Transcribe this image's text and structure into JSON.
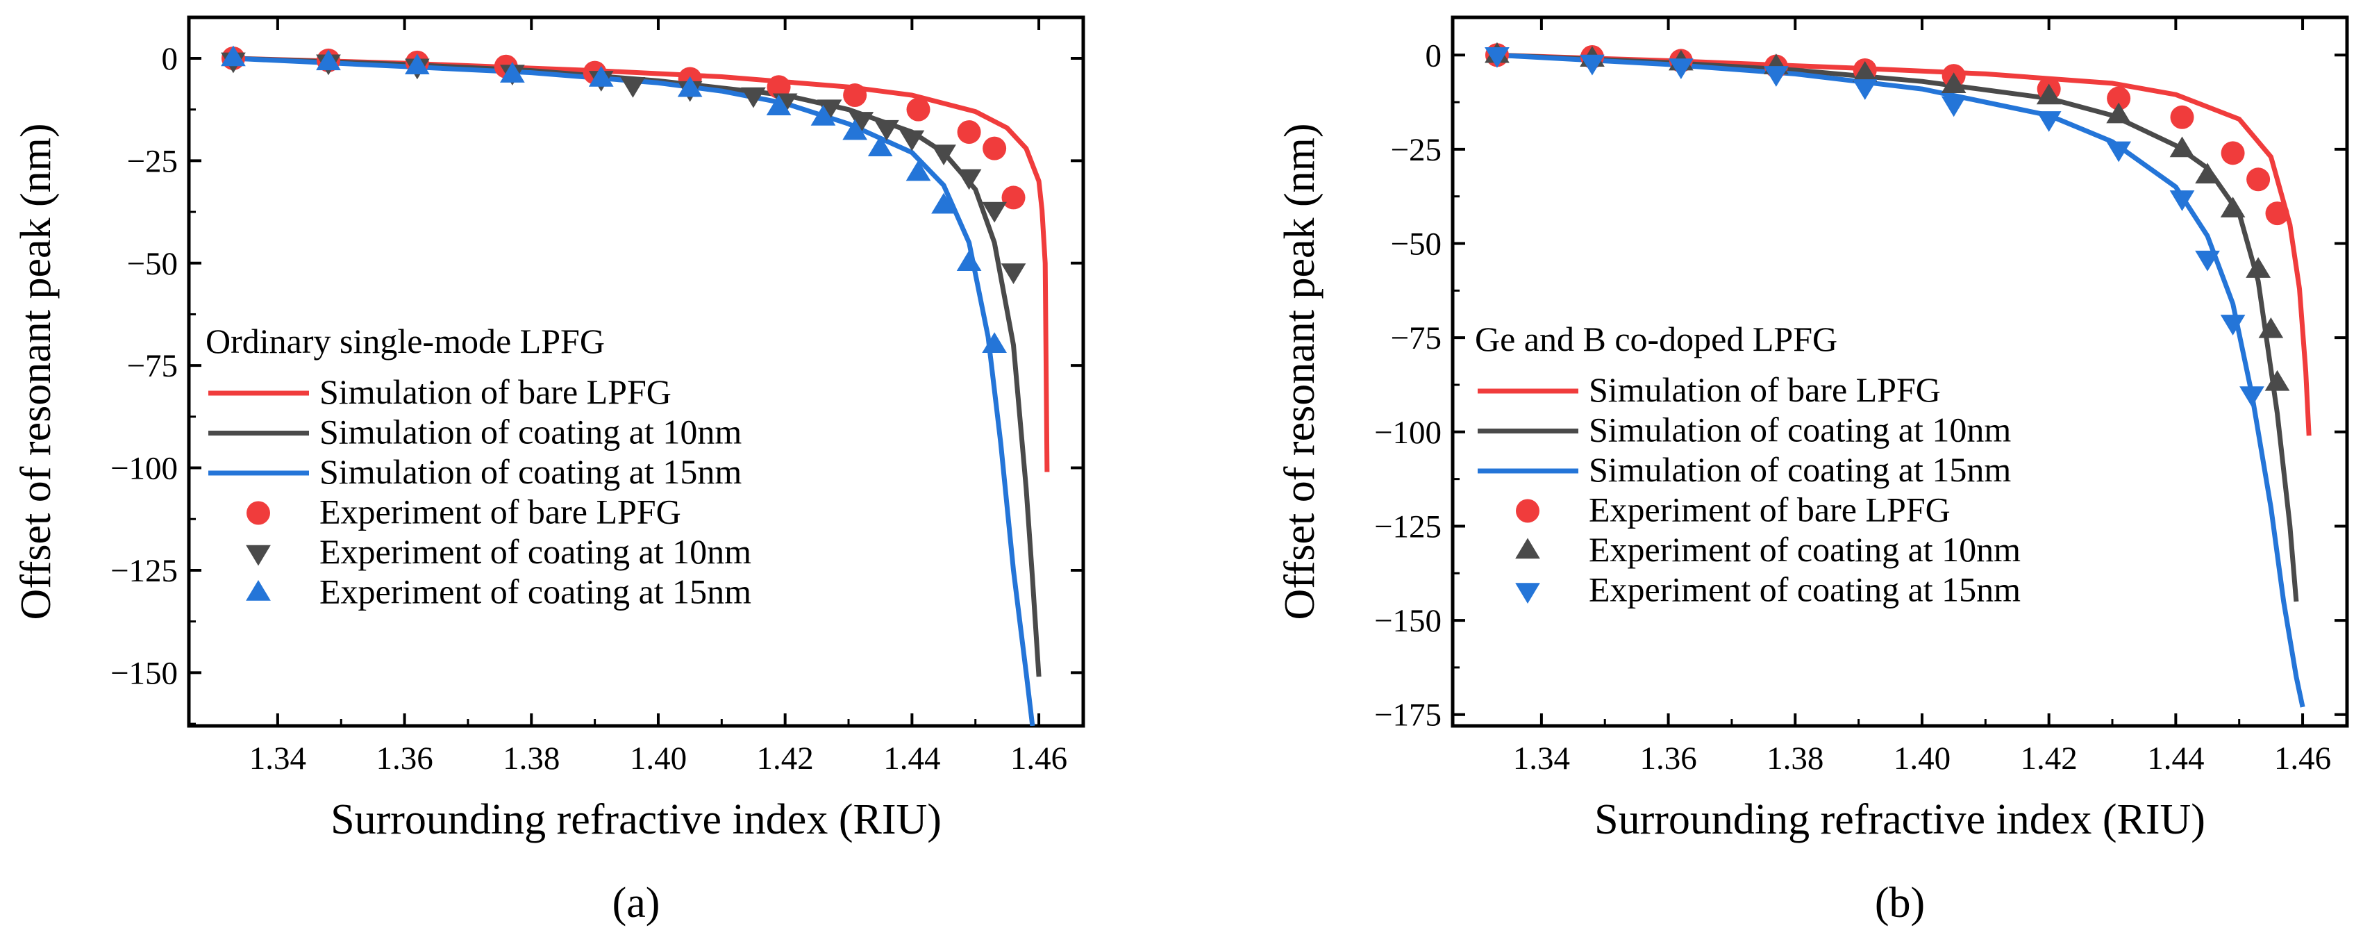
{
  "chart_data": [
    {
      "type": "line",
      "panel_label": "(a)",
      "xlabel": "Surrounding refractive index (RIU)",
      "ylabel": "Offset of resonant peak (nm)",
      "xlim": [
        1.326,
        1.467
      ],
      "ylim": [
        -163,
        10
      ],
      "xticks": [
        1.34,
        1.36,
        1.38,
        1.4,
        1.42,
        1.44,
        1.46
      ],
      "xtick_labels": [
        "1.34",
        "1.36",
        "1.38",
        "1.40",
        "1.42",
        "1.44",
        "1.46"
      ],
      "yticks": [
        0,
        -25,
        -50,
        -75,
        -100,
        -125,
        -150
      ],
      "ytick_labels": [
        "0",
        "−25",
        "−50",
        "−75",
        "−100",
        "−125",
        "−150"
      ],
      "legend_title": "Ordinary single-mode LPFG",
      "legend_position": "left",
      "grid": false,
      "series": [
        {
          "name": "Simulation of bare LPFG",
          "kind": "line",
          "color": "#f03c3c",
          "x": [
            1.333,
            1.36,
            1.39,
            1.41,
            1.43,
            1.44,
            1.45,
            1.455,
            1.458,
            1.46,
            1.4605,
            1.461,
            1.4613
          ],
          "y": [
            0,
            -1.2,
            -3,
            -4.5,
            -7,
            -9,
            -13,
            -17,
            -22,
            -30,
            -37,
            -50,
            -101
          ]
        },
        {
          "name": "Simulation of coating at 10nm",
          "kind": "line",
          "color": "#4a4a4a",
          "x": [
            1.333,
            1.36,
            1.38,
            1.4,
            1.42,
            1.43,
            1.44,
            1.445,
            1.45,
            1.453,
            1.456,
            1.458,
            1.459,
            1.46
          ],
          "y": [
            0,
            -1.5,
            -3,
            -5.5,
            -9,
            -12.5,
            -18,
            -23,
            -32,
            -45,
            -70,
            -105,
            -127,
            -151
          ]
        },
        {
          "name": "Simulation of coating at 15nm",
          "kind": "line",
          "color": "#2475d8",
          "x": [
            1.333,
            1.36,
            1.38,
            1.4,
            1.41,
            1.42,
            1.43,
            1.44,
            1.445,
            1.449,
            1.452,
            1.454,
            1.456,
            1.458,
            1.459
          ],
          "y": [
            0,
            -2,
            -3.5,
            -6,
            -8,
            -11,
            -16,
            -23,
            -31,
            -45,
            -68,
            -94,
            -125,
            -150,
            -163
          ]
        },
        {
          "name": "Experiment of bare LPFG",
          "kind": "scatter",
          "marker": "circle",
          "color": "#f03c3c",
          "x": [
            1.333,
            1.348,
            1.362,
            1.376,
            1.39,
            1.405,
            1.419,
            1.431,
            1.441,
            1.449,
            1.453,
            1.456
          ],
          "y": [
            0,
            -0.5,
            -1,
            -2,
            -3.5,
            -5,
            -7,
            -9,
            -12.5,
            -18,
            -22,
            -34
          ]
        },
        {
          "name": "Experiment of coating at 10nm",
          "kind": "scatter",
          "marker": "triangle-down",
          "color": "#4a4a4a",
          "x": [
            1.333,
            1.348,
            1.362,
            1.377,
            1.391,
            1.396,
            1.405,
            1.415,
            1.42,
            1.427,
            1.432,
            1.436,
            1.44,
            1.445,
            1.449,
            1.453,
            1.456
          ],
          "y": [
            -0.5,
            -1,
            -2,
            -3.5,
            -5,
            -6.5,
            -7.5,
            -9,
            -10.5,
            -12,
            -15,
            -17,
            -19.5,
            -23,
            -29,
            -37,
            -52
          ]
        },
        {
          "name": "Experiment of coating at 15nm",
          "kind": "scatter",
          "marker": "triangle-up",
          "color": "#2475d8",
          "x": [
            1.333,
            1.348,
            1.362,
            1.377,
            1.391,
            1.405,
            1.419,
            1.426,
            1.431,
            1.435,
            1.441,
            1.445,
            1.449,
            1.453
          ],
          "y": [
            0,
            -1,
            -2,
            -4,
            -5,
            -7.5,
            -12,
            -14.5,
            -18,
            -22,
            -28,
            -36,
            -50,
            -70
          ]
        }
      ]
    },
    {
      "type": "line",
      "panel_label": "(b)",
      "xlabel": "Surrounding refractive index (RIU)",
      "ylabel": "Offset of resonant peak (nm)",
      "xlim": [
        1.326,
        1.467
      ],
      "ylim": [
        -178,
        10
      ],
      "xticks": [
        1.34,
        1.36,
        1.38,
        1.4,
        1.42,
        1.44,
        1.46
      ],
      "xtick_labels": [
        "1.34",
        "1.36",
        "1.38",
        "1.40",
        "1.42",
        "1.44",
        "1.46"
      ],
      "yticks": [
        0,
        -25,
        -50,
        -75,
        -100,
        -125,
        -150,
        -175
      ],
      "ytick_labels": [
        "0",
        "−25",
        "−50",
        "−75",
        "−100",
        "−125",
        "−150",
        "−175"
      ],
      "legend_title": "Ge and B co-doped LPFG",
      "legend_position": "left",
      "grid": false,
      "series": [
        {
          "name": "Simulation of bare LPFG",
          "kind": "line",
          "color": "#f03c3c",
          "x": [
            1.333,
            1.36,
            1.39,
            1.41,
            1.43,
            1.44,
            1.45,
            1.455,
            1.458,
            1.4595,
            1.4605,
            1.461
          ],
          "y": [
            0,
            -1.5,
            -3.5,
            -5,
            -7.5,
            -10.5,
            -17,
            -27,
            -45,
            -62,
            -84,
            -101
          ]
        },
        {
          "name": "Simulation of coating at 10nm",
          "kind": "line",
          "color": "#4a4a4a",
          "x": [
            1.333,
            1.36,
            1.38,
            1.4,
            1.42,
            1.43,
            1.44,
            1.445,
            1.45,
            1.453,
            1.456,
            1.458,
            1.459
          ],
          "y": [
            0,
            -2,
            -4,
            -7,
            -11.5,
            -16,
            -24,
            -30,
            -42,
            -60,
            -95,
            -125,
            -145
          ]
        },
        {
          "name": "Simulation of coating at 15nm",
          "kind": "line",
          "color": "#2475d8",
          "x": [
            1.333,
            1.36,
            1.38,
            1.4,
            1.42,
            1.43,
            1.44,
            1.445,
            1.449,
            1.452,
            1.455,
            1.457,
            1.459,
            1.46
          ],
          "y": [
            0,
            -2.5,
            -5,
            -9,
            -16,
            -23,
            -35,
            -48,
            -66,
            -90,
            -120,
            -145,
            -165,
            -173
          ]
        },
        {
          "name": "Experiment of bare LPFG",
          "kind": "scatter",
          "marker": "circle",
          "color": "#f03c3c",
          "x": [
            1.333,
            1.348,
            1.362,
            1.377,
            1.391,
            1.405,
            1.42,
            1.431,
            1.441,
            1.449,
            1.453,
            1.456
          ],
          "y": [
            0,
            -0.5,
            -1.5,
            -3,
            -4,
            -5.5,
            -9,
            -11.5,
            -16.5,
            -26,
            -33,
            -42
          ]
        },
        {
          "name": "Experiment of coating at 10nm",
          "kind": "scatter",
          "marker": "triangle-up",
          "color": "#4a4a4a",
          "x": [
            1.333,
            1.348,
            1.362,
            1.377,
            1.391,
            1.405,
            1.42,
            1.431,
            1.441,
            1.445,
            1.449,
            1.453,
            1.455,
            1.456
          ],
          "y": [
            0,
            -1,
            -2,
            -3,
            -5,
            -8,
            -11,
            -16,
            -25,
            -32,
            -41,
            -57,
            -73,
            -87
          ]
        },
        {
          "name": "Experiment of coating at 15nm",
          "kind": "scatter",
          "marker": "triangle-down",
          "color": "#2475d8",
          "x": [
            1.333,
            1.348,
            1.362,
            1.377,
            1.391,
            1.405,
            1.42,
            1.431,
            1.441,
            1.445,
            1.449,
            1.452
          ],
          "y": [
            0,
            -2,
            -3,
            -5,
            -8.5,
            -13,
            -17,
            -25,
            -38,
            -54,
            -71,
            -90
          ]
        }
      ]
    }
  ]
}
